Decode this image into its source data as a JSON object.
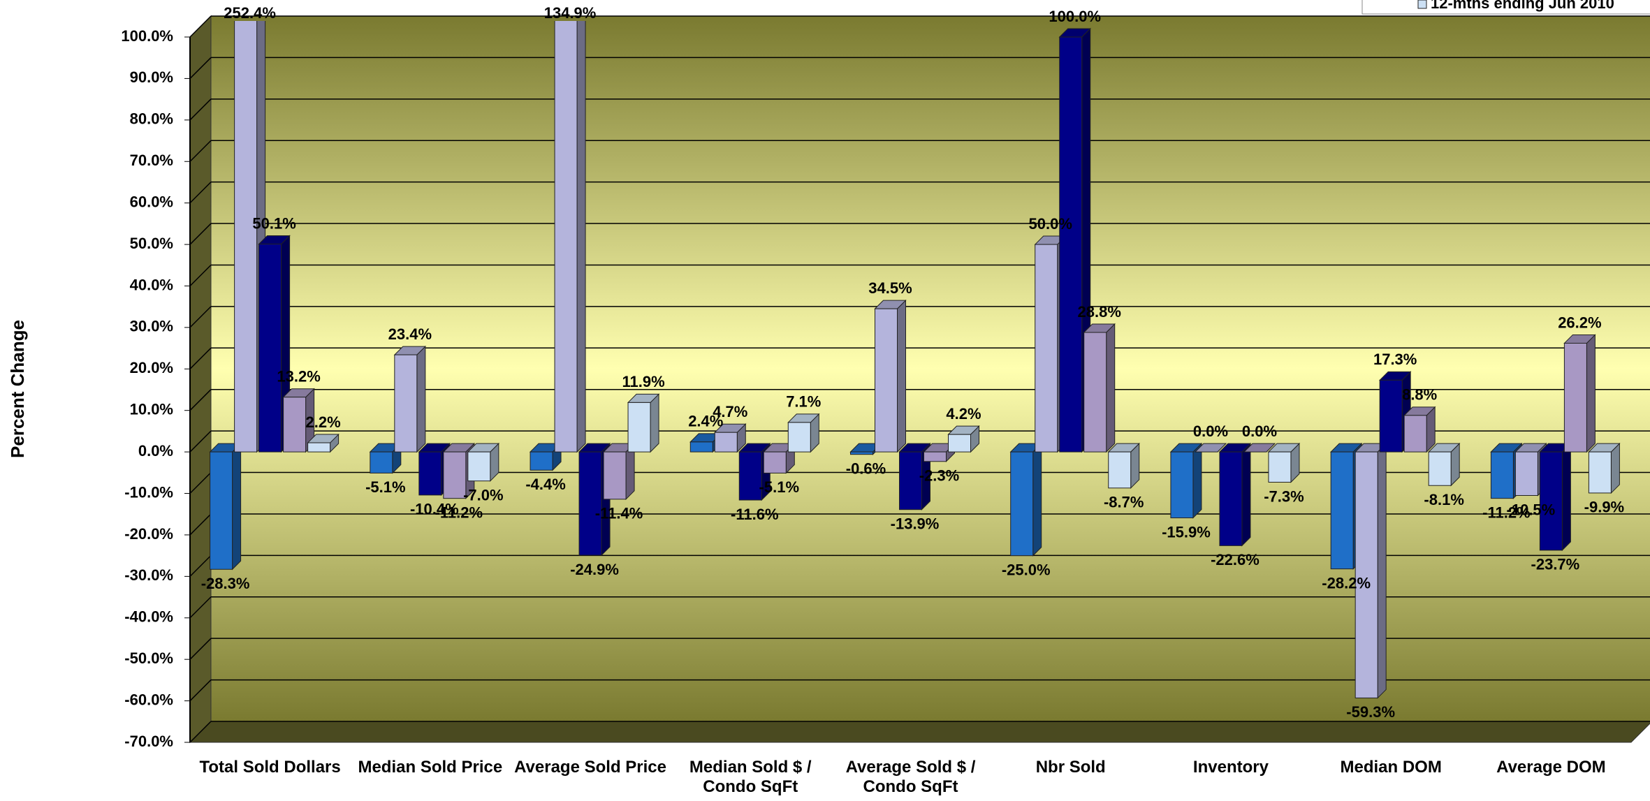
{
  "chart_data": {
    "type": "bar3d",
    "y_axis_label": "Percent Change",
    "categories": [
      "Total Sold Dollars",
      "Median Sold Price",
      "Average Sold Price",
      "Median Sold $ / Condo SqFt",
      "Average Sold $ / Condo SqFt",
      "Nbr Sold",
      "Inventory",
      "Median DOM",
      "Average DOM"
    ],
    "series": [
      {
        "color": "#1f6fc8",
        "values": [
          -28.3,
          -5.1,
          -4.4,
          2.4,
          -0.6,
          -25.0,
          -15.9,
          -28.2,
          -11.2
        ],
        "value_labels": [
          "-28.3%",
          "-5.1%",
          "-4.4%",
          "2.4%",
          "-0.6%",
          "-25.0%",
          "-15.9%",
          "-28.2%",
          "-11.2%"
        ]
      },
      {
        "color": "#b4b4dc",
        "values": [
          252.4,
          23.4,
          134.9,
          4.7,
          34.5,
          50.0,
          0.0,
          -59.3,
          -10.5
        ],
        "value_labels": [
          "252.4%",
          "23.4%",
          "134.9%",
          "4.7%",
          "34.5%",
          "50.0%",
          "0.0%",
          "-59.3%",
          "-10.5%"
        ]
      },
      {
        "color": "#000088",
        "values": [
          50.1,
          -10.4,
          -24.9,
          -11.6,
          -13.9,
          100.0,
          -22.6,
          17.3,
          -23.7
        ],
        "value_labels": [
          "50.1%",
          "-10.4%",
          "-24.9%",
          "-11.6%",
          "-13.9%",
          "100.0%",
          "-22.6%",
          "17.3%",
          "-23.7%"
        ]
      },
      {
        "color": "#a898c4",
        "values": [
          13.2,
          -11.2,
          -11.4,
          -5.1,
          -2.3,
          28.8,
          0.0,
          8.8,
          26.2
        ],
        "value_labels": [
          "13.2%",
          "-11.2%",
          "-11.4%",
          "-5.1%",
          "-2.3%",
          "28.8%",
          "0.0%",
          "8.8%",
          "26.2%"
        ]
      },
      {
        "name": "12-mths ending Jun 2010",
        "color": "#cce0f4",
        "values": [
          2.2,
          -7.0,
          11.9,
          7.1,
          4.2,
          -8.7,
          -7.3,
          -8.1,
          -9.9
        ],
        "value_labels": [
          "2.2%",
          "-7.0%",
          "11.9%",
          "7.1%",
          "4.2%",
          "-8.7%",
          "-7.3%",
          "-8.1%",
          "-9.9%"
        ]
      }
    ],
    "ylim": [
      -70,
      100
    ],
    "yticks": [
      {
        "value": -70,
        "label": "-70.0%"
      },
      {
        "value": -60,
        "label": "-60.0%"
      },
      {
        "value": -50,
        "label": "-50.0%"
      },
      {
        "value": -40,
        "label": "-40.0%"
      },
      {
        "value": -30,
        "label": "-30.0%"
      },
      {
        "value": -20,
        "label": "-20.0%"
      },
      {
        "value": -10,
        "label": "-10.0%"
      },
      {
        "value": 0,
        "label": "0.0%"
      },
      {
        "value": 10,
        "label": "10.0%"
      },
      {
        "value": 20,
        "label": "20.0%"
      },
      {
        "value": 30,
        "label": "30.0%"
      },
      {
        "value": 40,
        "label": "40.0%"
      },
      {
        "value": 50,
        "label": "50.0%"
      },
      {
        "value": 60,
        "label": "60.0%"
      },
      {
        "value": 70,
        "label": "70.0%"
      },
      {
        "value": 80,
        "label": "80.0%"
      },
      {
        "value": 90,
        "label": "90.0%"
      },
      {
        "value": 100,
        "label": "100.0%"
      }
    ],
    "grid": true
  }
}
